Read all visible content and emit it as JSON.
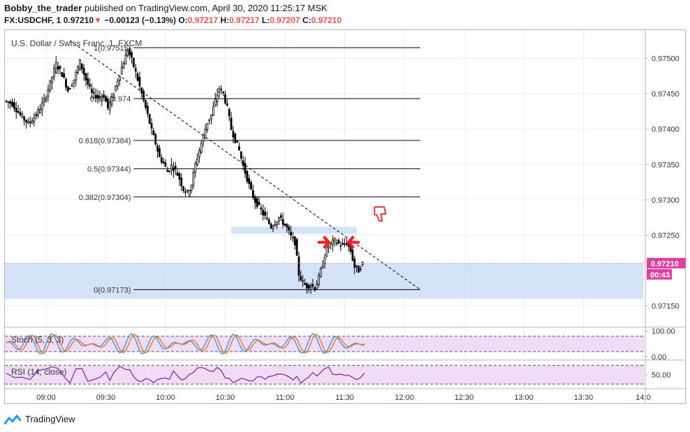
{
  "header": {
    "author": "Bobby_the_trader",
    "published_text": "published on TradingView.com, April 30, 2020 11:25:17 MSK",
    "symbol": "FX:USDCHF, 1",
    "last": "0.97210",
    "change_arrow": "▼",
    "change": "−0.00123 (−0.13%)",
    "ohlc_o_label": "O:",
    "ohlc_o": "0.97217",
    "ohlc_h_label": "H:",
    "ohlc_h": "0.97217",
    "ohlc_l_label": "L:",
    "ohlc_l": "0.97207",
    "ohlc_c_label": "C:",
    "ohlc_c": "0.97210"
  },
  "footer": {
    "brand": "TradingView"
  },
  "colors": {
    "price_label": "#e040a0",
    "zone": "#c9dcf5",
    "indicator_bg": "#f0dcf7",
    "candle": "#000000"
  },
  "chart_data": {
    "type": "candlestick",
    "title": "U.S. Dollar / Swiss Franc, 1, FXCM",
    "y_range": [
      0.9712,
      0.9754
    ],
    "y_ticks": [
      "0.97500",
      "0.97450",
      "0.97400",
      "0.97350",
      "0.97300",
      "0.97250",
      "0.97150"
    ],
    "x_ticks": [
      "09:00",
      "09:30",
      "10:00",
      "10:30",
      "11:00",
      "11:30",
      "12:00",
      "12:30",
      "13:00",
      "13:30",
      "14:0"
    ],
    "x_tick_minutes": [
      0,
      30,
      60,
      90,
      120,
      150,
      180,
      210,
      240,
      270,
      300
    ],
    "current_price_label": "0.97210",
    "current_price": 0.9721,
    "countdown_label": "00:43",
    "fib_levels": [
      {
        "label": "1(0.97515)",
        "value": 0.97515
      },
      {
        "label": "0.786(0.974",
        "value": 0.97443
      },
      {
        "label": "0.618(0.97384)",
        "value": 0.97384
      },
      {
        "label": "0.5(0.97344)",
        "value": 0.97344
      },
      {
        "label": "0.382(0.97304)",
        "value": 0.97304
      },
      {
        "label": "0(0.97173)",
        "value": 0.97173
      }
    ],
    "fib_x_range_minutes": [
      44,
      188
    ],
    "trendline": {
      "from": [
        12,
        0.97525
      ],
      "to": [
        188,
        0.97173
      ]
    },
    "zones": [
      {
        "x": [
          -22,
          300
        ],
        "y": [
          0.9716,
          0.9721
        ]
      },
      {
        "x": [
          93,
          156
        ],
        "y": [
          0.97252,
          0.97262
        ]
      }
    ],
    "close_path": [
      [
        -20,
        0.9744
      ],
      [
        -16,
        0.97436
      ],
      [
        -12,
        0.9742
      ],
      [
        -8,
        0.97408
      ],
      [
        -4,
        0.9742
      ],
      [
        0,
        0.9744
      ],
      [
        3,
        0.97465
      ],
      [
        6,
        0.97492
      ],
      [
        9,
        0.97478
      ],
      [
        12,
        0.97455
      ],
      [
        15,
        0.9747
      ],
      [
        18,
        0.97495
      ],
      [
        21,
        0.9747
      ],
      [
        24,
        0.9745
      ],
      [
        27,
        0.97445
      ],
      [
        30,
        0.97448
      ],
      [
        32,
        0.9743
      ],
      [
        34,
        0.97442
      ],
      [
        37,
        0.9747
      ],
      [
        40,
        0.97495
      ],
      [
        42,
        0.97512
      ],
      [
        44,
        0.97498
      ],
      [
        46,
        0.9748
      ],
      [
        48,
        0.9746
      ],
      [
        50,
        0.9744
      ],
      [
        52,
        0.9742
      ],
      [
        54,
        0.97398
      ],
      [
        56,
        0.9738
      ],
      [
        58,
        0.9736
      ],
      [
        60,
        0.97352
      ],
      [
        62,
        0.9734
      ],
      [
        64,
        0.97348
      ],
      [
        66,
        0.97342
      ],
      [
        68,
        0.9733
      ],
      [
        70,
        0.97315
      ],
      [
        72,
        0.9731
      ],
      [
        74,
        0.97322
      ],
      [
        76,
        0.9735
      ],
      [
        78,
        0.9737
      ],
      [
        80,
        0.9739
      ],
      [
        82,
        0.9741
      ],
      [
        84,
        0.9742
      ],
      [
        86,
        0.9744
      ],
      [
        88,
        0.97458
      ],
      [
        90,
        0.9745
      ],
      [
        92,
        0.9743
      ],
      [
        94,
        0.974
      ],
      [
        96,
        0.97385
      ],
      [
        98,
        0.9737
      ],
      [
        100,
        0.97348
      ],
      [
        102,
        0.9733
      ],
      [
        104,
        0.97312
      ],
      [
        106,
        0.97298
      ],
      [
        108,
        0.9729
      ],
      [
        110,
        0.9728
      ],
      [
        112,
        0.97272
      ],
      [
        114,
        0.97262
      ],
      [
        116,
        0.97268
      ],
      [
        118,
        0.97275
      ],
      [
        120,
        0.97268
      ],
      [
        122,
        0.9726
      ],
      [
        124,
        0.97248
      ],
      [
        126,
        0.9724
      ],
      [
        128,
        0.97195
      ],
      [
        130,
        0.97182
      ],
      [
        132,
        0.97178
      ],
      [
        134,
        0.9718
      ],
      [
        136,
        0.97175
      ],
      [
        138,
        0.9719
      ],
      [
        140,
        0.9721
      ],
      [
        142,
        0.97232
      ],
      [
        144,
        0.97238
      ],
      [
        146,
        0.97242
      ],
      [
        148,
        0.97238
      ],
      [
        150,
        0.97235
      ],
      [
        152,
        0.9724
      ],
      [
        154,
        0.97228
      ],
      [
        156,
        0.97205
      ],
      [
        158,
        0.972
      ],
      [
        160,
        0.9721
      ]
    ],
    "stoch": {
      "label": "Stoch (5, 3, 3)",
      "y_range": [
        -10,
        110
      ],
      "y_ticks": [
        "100.00",
        "0.00"
      ],
      "tick_values": [
        100,
        0
      ],
      "bands": [
        80,
        20
      ]
    },
    "rsi": {
      "label": "RSI (14, close)",
      "y_range": [
        20,
        80
      ],
      "y_ticks": [
        "50.00"
      ],
      "tick_values": [
        50
      ],
      "bands": [
        70,
        30
      ]
    }
  }
}
